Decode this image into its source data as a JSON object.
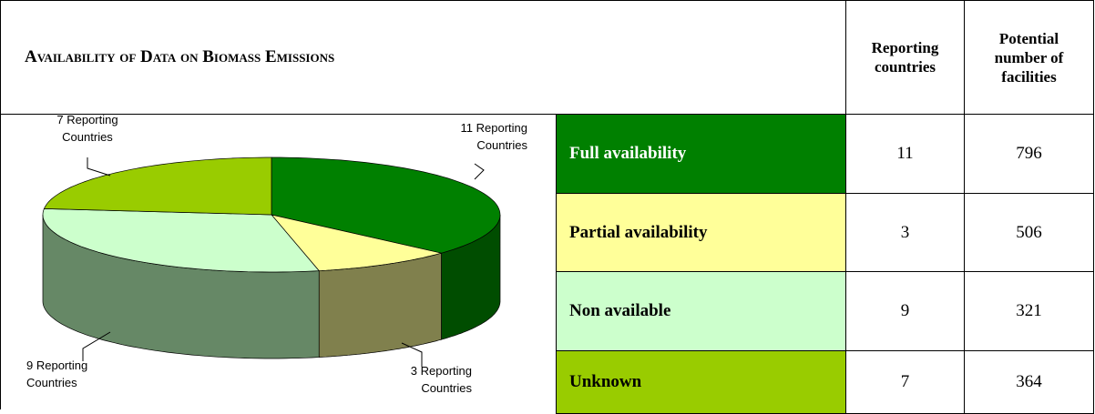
{
  "header": {
    "title": "Availability of Data on Biomass Emissions",
    "columns": [
      "Reporting countries",
      "Potential number of facilities"
    ]
  },
  "table": {
    "rows": [
      {
        "label": "Full availability",
        "reporting": 11,
        "facilities": 796,
        "color": "#008000",
        "side": "#004d00",
        "text": "#ffffff"
      },
      {
        "label": "Partial availability",
        "reporting": 3,
        "facilities": 506,
        "color": "#ffff99",
        "side": "#80804d",
        "text": "#000000"
      },
      {
        "label": "Non available",
        "reporting": 9,
        "facilities": 321,
        "color": "#ccffcc",
        "side": "#668866",
        "text": "#000000"
      },
      {
        "label": "Unknown",
        "reporting": 7,
        "facilities": 364,
        "color": "#99cc00",
        "side": "#4d6600",
        "text": "#000000"
      }
    ]
  },
  "pie_labels": [
    [
      "11 Reporting",
      "Countries"
    ],
    [
      "3 Reporting",
      "Countries"
    ],
    [
      "9 Reporting",
      "Countries"
    ],
    [
      "7 Reporting",
      "Countries"
    ]
  ]
}
